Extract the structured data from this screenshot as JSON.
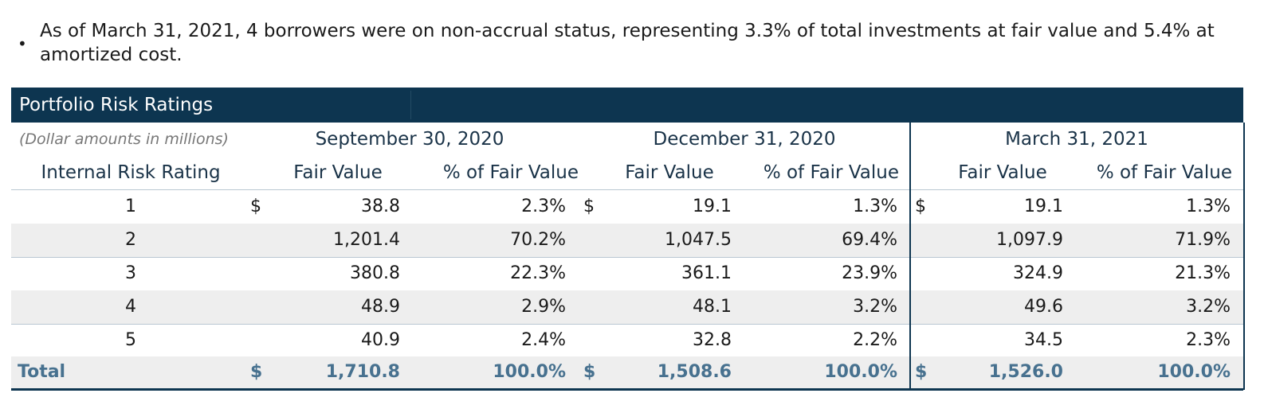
{
  "bullet_symbol": "•",
  "note": "As of March 31, 2021, 4 borrowers were on non-accrual status, representing 3.3% of total investments at fair value and 5.4% at amortized cost.",
  "table": {
    "title": "Portfolio Risk Ratings",
    "dollar_note": "(Dollar amounts in millions)",
    "row_header": "Internal Risk Rating",
    "periods": [
      "September 30, 2020",
      "December 31, 2020",
      "March 31, 2021"
    ],
    "col_labels": {
      "fair_value": "Fair Value",
      "pct_fair_value": "% of Fair Value"
    },
    "currency_symbol": "$",
    "rows": [
      {
        "rating": "1",
        "values": [
          "38.8",
          "2.3%",
          "19.1",
          "1.3%",
          "19.1",
          "1.3%"
        ]
      },
      {
        "rating": "2",
        "values": [
          "1,201.4",
          "70.2%",
          "1,047.5",
          "69.4%",
          "1,097.9",
          "71.9%"
        ]
      },
      {
        "rating": "3",
        "values": [
          "380.8",
          "22.3%",
          "361.1",
          "23.9%",
          "324.9",
          "21.3%"
        ]
      },
      {
        "rating": "4",
        "values": [
          "48.9",
          "2.9%",
          "48.1",
          "3.2%",
          "49.6",
          "3.2%"
        ]
      },
      {
        "rating": "5",
        "values": [
          "40.9",
          "2.4%",
          "32.8",
          "2.2%",
          "34.5",
          "2.3%"
        ]
      }
    ],
    "total": {
      "label": "Total",
      "values": [
        "1,710.8",
        "100.0%",
        "1,508.6",
        "100.0%",
        "1,526.0",
        "100.0%"
      ]
    }
  }
}
